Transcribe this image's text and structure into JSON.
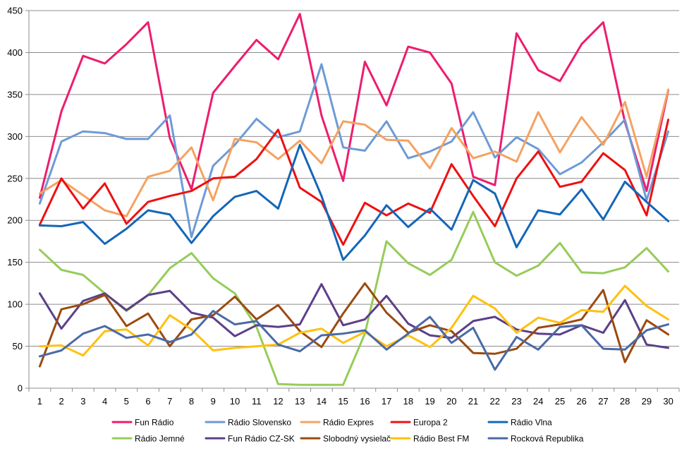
{
  "chart_data": {
    "type": "line",
    "title": "",
    "xlabel": "",
    "ylabel": "",
    "ylim": [
      0,
      450
    ],
    "yticks": [
      0,
      50,
      100,
      150,
      200,
      250,
      300,
      350,
      400,
      450
    ],
    "grid": "horizontal",
    "legend_position": "bottom",
    "x": [
      "1",
      "2",
      "3",
      "4",
      "5",
      "6",
      "7",
      "8",
      "9",
      "10",
      "11",
      "12",
      "13",
      "14",
      "15",
      "16",
      "17",
      "18",
      "19",
      "20",
      "21",
      "22",
      "23",
      "24",
      "25",
      "26",
      "27",
      "28",
      "29",
      "30"
    ],
    "series": [
      {
        "name": "Fun Rádio",
        "color": "#ee1c6e",
        "values": [
          227,
          330,
          396,
          387,
          410,
          436,
          298,
          237,
          352,
          384,
          415,
          392,
          446,
          325,
          247,
          389,
          337,
          407,
          400,
          363,
          252,
          242,
          423,
          379,
          366,
          410,
          436,
          317,
          235,
          355
        ]
      },
      {
        "name": "Rádio Slovensko",
        "color": "#6e9ad6",
        "values": [
          220,
          294,
          306,
          304,
          297,
          297,
          325,
          180,
          265,
          290,
          321,
          299,
          306,
          386,
          287,
          283,
          318,
          274,
          282,
          294,
          329,
          275,
          299,
          285,
          255,
          269,
          293,
          320,
          224,
          306
        ]
      },
      {
        "name": "Rádio Expres",
        "color": "#f5a260",
        "values": [
          232,
          248,
          230,
          212,
          205,
          252,
          259,
          287,
          224,
          297,
          293,
          273,
          295,
          268,
          318,
          314,
          296,
          295,
          262,
          310,
          274,
          282,
          270,
          329,
          281,
          323,
          290,
          341,
          252,
          356
        ]
      },
      {
        "name": "Europa 2",
        "color": "#ee1010",
        "values": [
          195,
          250,
          214,
          244,
          196,
          222,
          229,
          235,
          250,
          252,
          273,
          308,
          239,
          222,
          171,
          221,
          206,
          220,
          209,
          267,
          229,
          193,
          250,
          282,
          240,
          246,
          280,
          260,
          206,
          320
        ]
      },
      {
        "name": "Rádio Vlna",
        "color": "#1466b8",
        "values": [
          194,
          193,
          198,
          172,
          190,
          212,
          207,
          173,
          205,
          228,
          235,
          214,
          290,
          229,
          153,
          182,
          218,
          192,
          214,
          189,
          248,
          232,
          168,
          212,
          207,
          237,
          201,
          246,
          222,
          199
        ]
      },
      {
        "name": "Rádio Jemné",
        "color": "#96cc58",
        "values": [
          165,
          141,
          135,
          113,
          92,
          111,
          143,
          161,
          131,
          113,
          73,
          5,
          4,
          4,
          4,
          65,
          175,
          149,
          135,
          153,
          210,
          150,
          134,
          146,
          173,
          138,
          137,
          144,
          167,
          139
        ]
      },
      {
        "name": "Fun Rádio CZ-SK",
        "color": "#5c3f8a",
        "values": [
          113,
          71,
          104,
          113,
          93,
          111,
          116,
          90,
          84,
          62,
          75,
          73,
          76,
          124,
          75,
          82,
          110,
          77,
          63,
          60,
          80,
          85,
          70,
          65,
          64,
          75,
          66,
          105,
          52,
          48
        ]
      },
      {
        "name": "Slobodný vysielač",
        "color": "#9b4a10",
        "values": [
          26,
          94,
          100,
          111,
          74,
          89,
          50,
          82,
          87,
          109,
          82,
          99,
          68,
          49,
          89,
          125,
          90,
          66,
          75,
          68,
          42,
          41,
          47,
          72,
          76,
          82,
          117,
          31,
          81,
          64
        ]
      },
      {
        "name": "Rádio Best FM",
        "color": "#fec10e",
        "values": [
          50,
          51,
          39,
          68,
          70,
          51,
          87,
          70,
          45,
          48,
          50,
          52,
          66,
          71,
          54,
          67,
          50,
          63,
          49,
          72,
          110,
          95,
          66,
          84,
          78,
          93,
          91,
          122,
          98,
          82
        ]
      },
      {
        "name": "Rocková Republika",
        "color": "#4a6aa6",
        "values": [
          38,
          45,
          65,
          74,
          60,
          64,
          55,
          64,
          92,
          76,
          80,
          52,
          44,
          63,
          65,
          69,
          46,
          65,
          85,
          54,
          72,
          22,
          61,
          46,
          73,
          75,
          47,
          46,
          69,
          76
        ]
      }
    ]
  }
}
